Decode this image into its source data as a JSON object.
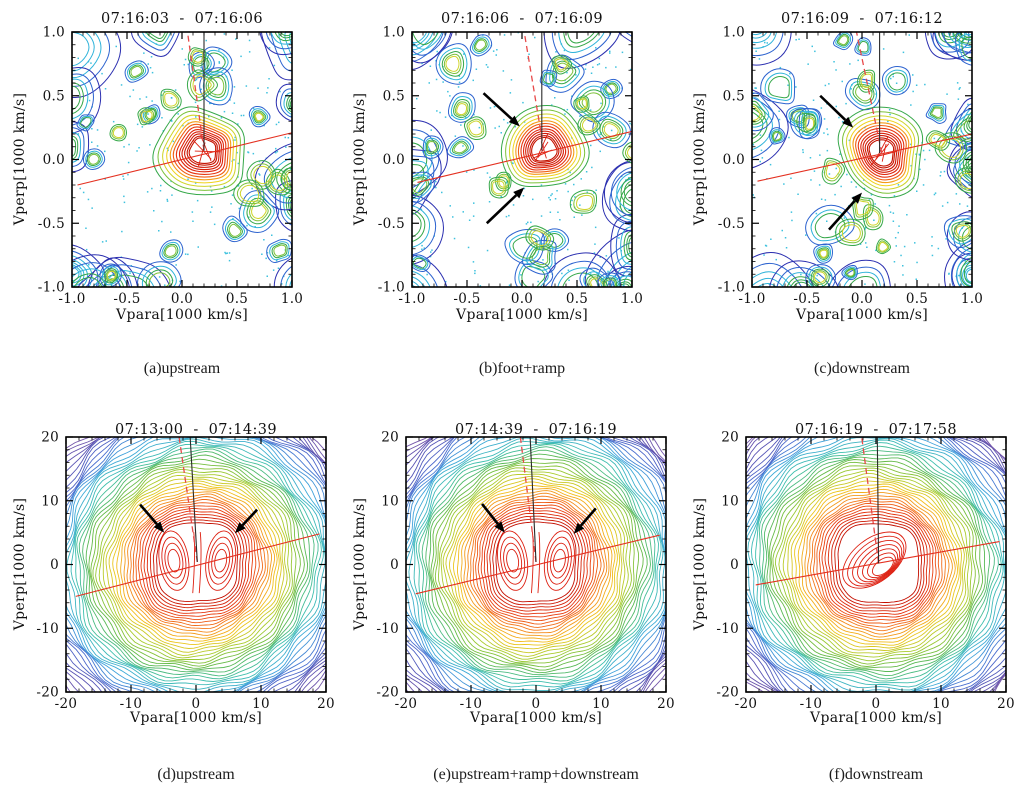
{
  "figure": {
    "background": "#ffffff"
  },
  "colors": {
    "frame": "#000000",
    "text": "#111111",
    "scatter_dots": "#3ec2de",
    "line_red": "#e43020",
    "line_red_dashed": "#e84848",
    "line_black": "#2a2a2a",
    "arrow_black": "#000000",
    "inner_contour_red": "#dd1f10",
    "colormap": [
      "#c40f00",
      "#e8380f",
      "#f4791a",
      "#f2c51c",
      "#aacc2e",
      "#5cb84a",
      "#3fbfae",
      "#3fa8dc",
      "#4a6ed0",
      "#5653b4",
      "#7456aa"
    ],
    "blob_chain": [
      "#2b2fb0",
      "#2d63cf",
      "#2fb3da",
      "#36a84a",
      "#7cc23a",
      "#cfd42a",
      "#f0d21c"
    ],
    "peak_rings": [
      "#36a84a",
      "#7cc23a",
      "#cfd42a",
      "#f0d21c",
      "#f49b18",
      "#ef5f14",
      "#e63410",
      "#de240c",
      "#d61e08",
      "#cf1805",
      "#c91402",
      "#c41200"
    ]
  },
  "chart_data": [
    {
      "type": "contour",
      "style": "ion-scattered",
      "panel": "a",
      "title": "07:16:03 - 07:16:06",
      "caption": "(a)upstream",
      "xlabel": "Vpara[1000 km/s]",
      "ylabel": "Vperp[1000 km/s]",
      "xlim": [
        -1.0,
        1.0
      ],
      "ylim": [
        -1.0,
        1.0
      ],
      "xticks": [
        -1.0,
        -0.5,
        0.0,
        0.5,
        1.0
      ],
      "xtick_labels": [
        "-1.0",
        "-0.5",
        "0.0",
        "0.5",
        "1.0"
      ],
      "yticks": [
        1.0,
        0.5,
        0.0,
        -0.5,
        -1.0
      ],
      "ytick_labels": [
        "1.0",
        "0.5",
        "0.0",
        "-0.5",
        "-1.0"
      ],
      "minor_tick_step": 0.1,
      "grid": false,
      "peak_center": [
        0.2,
        0.07
      ],
      "lines": {
        "red_solid": [
          [
            -0.95,
            -0.2
          ],
          [
            1.0,
            0.21
          ]
        ],
        "red_dashed": [
          [
            0.2,
            0.07
          ],
          [
            0.05,
            1.0
          ]
        ],
        "black_solid": [
          [
            0.2,
            1.0
          ],
          [
            0.2,
            0.07
          ]
        ]
      },
      "arrows": [],
      "seed": 3
    },
    {
      "type": "contour",
      "style": "ion-scattered",
      "panel": "b",
      "title": "07:16:06 - 07:16:09",
      "caption": "(b)foot+ramp",
      "xlabel": "Vpara[1000 km/s]",
      "ylabel": "Vperp[1000 km/s]",
      "xlim": [
        -1.0,
        1.0
      ],
      "ylim": [
        -1.0,
        1.0
      ],
      "xticks": [
        -1.0,
        -0.5,
        0.0,
        0.5,
        1.0
      ],
      "xtick_labels": [
        "-1.0",
        "-0.5",
        "0.0",
        "0.5",
        "1.0"
      ],
      "yticks": [
        1.0,
        0.5,
        0.0,
        -0.5,
        -1.0
      ],
      "ytick_labels": [
        "1.0",
        "0.5",
        "0.0",
        "-0.5",
        "-1.0"
      ],
      "minor_tick_step": 0.1,
      "grid": false,
      "peak_center": [
        0.2,
        0.07
      ],
      "lines": {
        "red_solid": [
          [
            -0.95,
            -0.18
          ],
          [
            1.0,
            0.22
          ]
        ],
        "red_dashed": [
          [
            0.2,
            0.07
          ],
          [
            0.02,
            1.0
          ]
        ],
        "black_solid": [
          [
            0.18,
            1.0
          ],
          [
            0.18,
            0.07
          ]
        ]
      },
      "arrows": [
        [
          -0.35,
          0.52,
          -0.02,
          0.26
        ],
        [
          -0.32,
          -0.5,
          0.02,
          -0.22
        ]
      ],
      "seed": 5
    },
    {
      "type": "contour",
      "style": "ion-scattered",
      "panel": "c",
      "title": "07:16:09 - 07:16:12",
      "caption": "(c)downstream",
      "xlabel": "Vpara[1000 km/s]",
      "ylabel": "Vperp[1000 km/s]",
      "xlim": [
        -1.0,
        1.0
      ],
      "ylim": [
        -1.0,
        1.0
      ],
      "xticks": [
        -1.0,
        -0.5,
        0.0,
        0.5,
        1.0
      ],
      "xtick_labels": [
        "-1.0",
        "-0.5",
        "0.0",
        "0.5",
        "1.0"
      ],
      "yticks": [
        1.0,
        0.5,
        0.0,
        -0.5,
        -1.0
      ],
      "ytick_labels": [
        "1.0",
        "0.5",
        "0.0",
        "-0.5",
        "-1.0"
      ],
      "minor_tick_step": 0.1,
      "grid": false,
      "peak_center": [
        0.18,
        0.05
      ],
      "lines": {
        "red_solid": [
          [
            -0.95,
            -0.17
          ],
          [
            1.0,
            0.2
          ]
        ],
        "red_dashed": [
          [
            0.18,
            0.05
          ],
          [
            -0.05,
            1.0
          ]
        ],
        "black_solid": [
          [
            0.16,
            1.0
          ],
          [
            0.16,
            0.05
          ]
        ]
      },
      "arrows": [
        [
          -0.38,
          0.5,
          -0.08,
          0.25
        ],
        [
          -0.3,
          -0.55,
          0.0,
          -0.26
        ]
      ],
      "seed": 9
    },
    {
      "type": "contour",
      "style": "electron-dense",
      "core_pattern": "double-lobe",
      "panel": "d",
      "title": "07:13:00 - 07:14:39",
      "caption": "(d)upstream",
      "xlabel": "Vpara[1000 km/s]",
      "ylabel": "Vperp[1000 km/s]",
      "xlim": [
        -20,
        20
      ],
      "ylim": [
        -20,
        20
      ],
      "xticks": [
        -20,
        -10,
        0,
        10,
        20
      ],
      "xtick_labels": [
        "-20",
        "-10",
        "0",
        "10",
        "20"
      ],
      "yticks": [
        20,
        10,
        0,
        -10,
        -20
      ],
      "ytick_labels": [
        "20",
        "10",
        "0",
        "-10",
        "-20"
      ],
      "minor_tick_step": 2,
      "grid": false,
      "peak_center": [
        0.2,
        0.4
      ],
      "lines": {
        "red_solid": [
          [
            -18.5,
            -5.0
          ],
          [
            19.0,
            4.8
          ]
        ],
        "red_dashed": [
          [
            0.2,
            0.4
          ],
          [
            -2.6,
            20
          ]
        ],
        "black_solid": [
          [
            -0.9,
            20
          ],
          [
            0.2,
            0.4
          ]
        ]
      },
      "arrows": [
        [
          -8.6,
          9.4,
          -4.9,
          5.0
        ],
        [
          9.4,
          8.6,
          6.0,
          4.9
        ]
      ],
      "seed": 13
    },
    {
      "type": "contour",
      "style": "electron-dense",
      "core_pattern": "double-lobe",
      "panel": "e",
      "title": "07:14:39 - 07:16:19",
      "caption": "(e)upstream+ramp+downstream",
      "xlabel": "Vpara[1000 km/s]",
      "ylabel": "Vperp[1000 km/s]",
      "xlim": [
        -20,
        20
      ],
      "ylim": [
        -20,
        20
      ],
      "xticks": [
        -20,
        -10,
        0,
        10,
        20
      ],
      "xtick_labels": [
        "-20",
        "-10",
        "0",
        "10",
        "20"
      ],
      "yticks": [
        20,
        10,
        0,
        -10,
        -20
      ],
      "ytick_labels": [
        "20",
        "10",
        "0",
        "-10",
        "-20"
      ],
      "minor_tick_step": 2,
      "grid": false,
      "peak_center": [
        0.0,
        0.4
      ],
      "lines": {
        "red_solid": [
          [
            -18.5,
            -4.6
          ],
          [
            19.0,
            4.6
          ]
        ],
        "red_dashed": [
          [
            0.0,
            0.4
          ],
          [
            -2.4,
            20
          ]
        ],
        "black_solid": [
          [
            -0.9,
            20
          ],
          [
            0.0,
            0.4
          ]
        ]
      },
      "arrows": [
        [
          -8.3,
          9.5,
          -4.8,
          5.0
        ],
        [
          9.2,
          8.8,
          5.8,
          4.8
        ]
      ],
      "seed": 17
    },
    {
      "type": "contour",
      "style": "electron-dense",
      "core_pattern": "diagonal-stripes",
      "panel": "f",
      "title": "07:16:19 - 07:17:58",
      "caption": "(f)downstream",
      "xlabel": "Vpara[1000 km/s]",
      "ylabel": "Vperp[1000 km/s]",
      "xlim": [
        -20,
        20
      ],
      "ylim": [
        -20,
        20
      ],
      "xticks": [
        -20,
        -10,
        0,
        10,
        20
      ],
      "xtick_labels": [
        "-20",
        "-10",
        "0",
        "10",
        "20"
      ],
      "yticks": [
        20,
        10,
        0,
        -10,
        -20
      ],
      "ytick_labels": [
        "20",
        "10",
        "0",
        "-10",
        "-20"
      ],
      "minor_tick_step": 2,
      "grid": false,
      "peak_center": [
        0.4,
        0.2
      ],
      "lines": {
        "red_solid": [
          [
            -18.5,
            -3.2
          ],
          [
            19.0,
            3.6
          ]
        ],
        "red_dashed": [
          [
            0.4,
            0.2
          ],
          [
            -2.2,
            20
          ]
        ],
        "black_solid": [
          [
            0.2,
            20
          ],
          [
            0.4,
            0.2
          ]
        ]
      },
      "arrows": [],
      "seed": 21
    }
  ]
}
